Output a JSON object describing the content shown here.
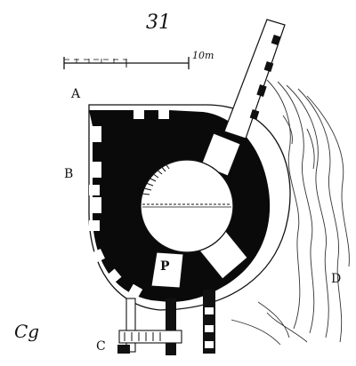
{
  "figure_number": "31",
  "scale_bar": {
    "label": "10m"
  },
  "labels": {
    "a": "A",
    "b": "B",
    "c": "C",
    "d": "D",
    "p": "P"
  },
  "signature": "Cg"
}
